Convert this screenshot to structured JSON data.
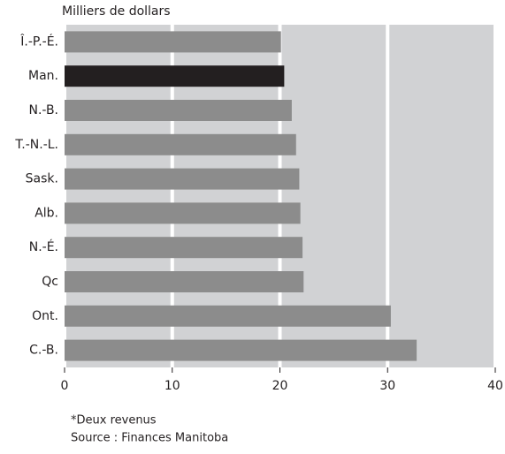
{
  "chart_data": {
    "type": "bar",
    "orientation": "horizontal",
    "axis_label": "Milliers de dollars",
    "categories": [
      "Î.-P.-É.",
      "Man.",
      "N.-B.",
      "T.-N.-L.",
      "Sask.",
      "Alb.",
      "N.-É.",
      "Qc",
      "Ont.",
      "C.-B."
    ],
    "values": [
      20.1,
      20.4,
      21.1,
      21.5,
      21.8,
      21.9,
      22.1,
      22.2,
      30.3,
      32.7
    ],
    "colors": [
      "#8c8c8c",
      "#231f20",
      "#8c8c8c",
      "#8c8c8c",
      "#8c8c8c",
      "#8c8c8c",
      "#8c8c8c",
      "#8c8c8c",
      "#8c8c8c",
      "#8c8c8c"
    ],
    "xlim": [
      0,
      40
    ],
    "xticks": [
      0,
      10,
      20,
      30,
      40
    ],
    "grid": true,
    "notes": [
      "*Deux revenus",
      "Source : Finances Manitoba"
    ]
  }
}
